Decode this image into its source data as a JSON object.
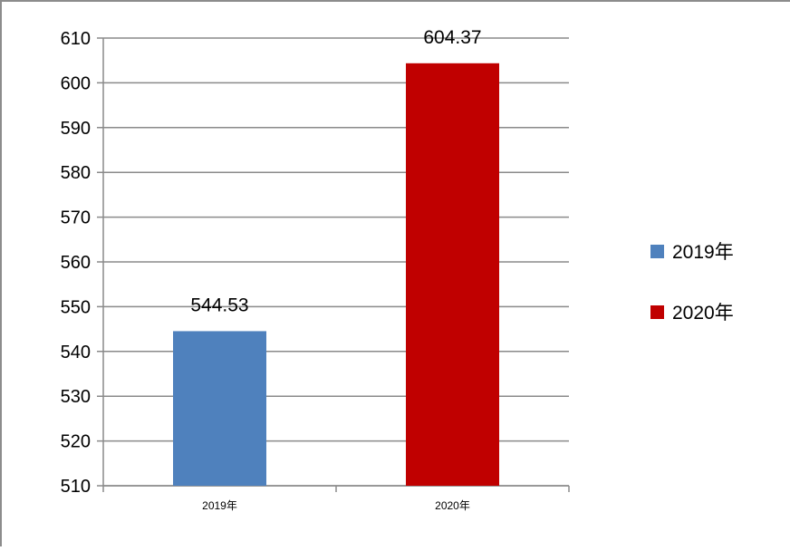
{
  "chart_data": {
    "type": "bar",
    "categories": [
      "2019年",
      "2020年"
    ],
    "values": [
      544.53,
      604.37
    ],
    "value_labels": [
      "544.53",
      "604.37"
    ],
    "colors": [
      "#4f81bd",
      "#c00000"
    ],
    "legend": {
      "placement": "right",
      "entries": [
        {
          "label": "2019年",
          "color": "#4f81bd"
        },
        {
          "label": "2020年",
          "color": "#c00000"
        }
      ]
    },
    "ylim": [
      510,
      610
    ],
    "y_ticks": [
      610,
      600,
      590,
      580,
      570,
      560,
      550,
      540,
      530,
      520,
      510
    ],
    "grid": true
  }
}
